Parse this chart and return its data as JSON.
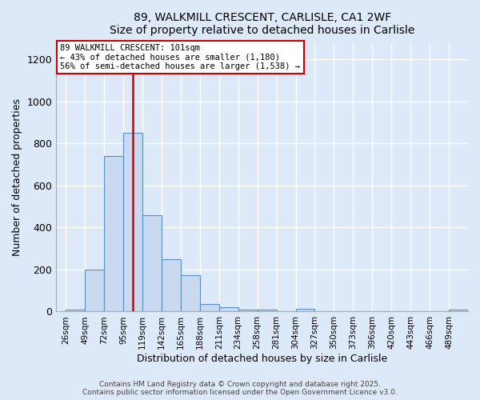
{
  "title": "89, WALKMILL CRESCENT, CARLISLE, CA1 2WF",
  "subtitle": "Size of property relative to detached houses in Carlisle",
  "xlabel": "Distribution of detached houses by size in Carlisle",
  "ylabel": "Number of detached properties",
  "bin_labels": [
    "26sqm",
    "49sqm",
    "72sqm",
    "95sqm",
    "119sqm",
    "142sqm",
    "165sqm",
    "188sqm",
    "211sqm",
    "234sqm",
    "258sqm",
    "281sqm",
    "304sqm",
    "327sqm",
    "350sqm",
    "373sqm",
    "396sqm",
    "420sqm",
    "443sqm",
    "466sqm",
    "489sqm"
  ],
  "bar_heights": [
    10,
    200,
    740,
    850,
    460,
    250,
    175,
    35,
    20,
    10,
    10,
    0,
    15,
    0,
    0,
    0,
    0,
    0,
    0,
    0,
    10
  ],
  "bar_color": "#c9d9f0",
  "bar_edge_color": "#5a8fc3",
  "background_color": "#dde8f8",
  "grid_color": "#ffffff",
  "red_line_color": "#cc0000",
  "ylim": [
    0,
    1280
  ],
  "yticks": [
    0,
    200,
    400,
    600,
    800,
    1000,
    1200
  ],
  "annotation_title": "89 WALKMILL CRESCENT: 101sqm",
  "annotation_line1": "← 43% of detached houses are smaller (1,180)",
  "annotation_line2": "56% of semi-detached houses are larger (1,538) →",
  "annotation_box_color": "#ffffff",
  "annotation_box_edge": "#cc0000",
  "footer1": "Contains HM Land Registry data © Crown copyright and database right 2025.",
  "footer2": "Contains public sector information licensed under the Open Government Licence v3.0."
}
